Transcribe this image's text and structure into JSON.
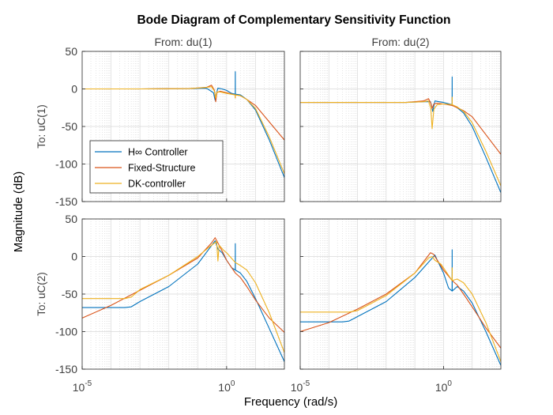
{
  "chart_data": {
    "type": "line",
    "title": "Bode Diagram of Complementary Sensitivity Function",
    "xlabel": "Frequency  (rad/s)",
    "ylabel": "Magnitude (dB)",
    "xscale": "log",
    "xlim": [
      1e-05,
      100
    ],
    "ylim": [
      -150,
      50
    ],
    "xticks": [
      {
        "value": 1e-05,
        "base": "10",
        "exp": "-5"
      },
      {
        "value": 1,
        "base": "10",
        "exp": "0"
      }
    ],
    "yticks": [
      50,
      0,
      -50,
      -100,
      -150
    ],
    "grid": true,
    "legend_position": "left",
    "series": [
      {
        "name": "H∞ Controller",
        "color": "#0072BD"
      },
      {
        "name": "Fixed-Structure",
        "color": "#D95319"
      },
      {
        "name": "DK-controller",
        "color": "#EDB120"
      }
    ],
    "panels": [
      {
        "from": "From: du(1)",
        "to": "To: uC(1)",
        "lines": [
          {
            "x": [
              1e-05,
              0.001,
              0.05,
              0.2,
              0.35,
              0.4,
              0.45,
              0.5,
              0.7,
              1,
              1.5,
              1.99,
              2,
              2.01,
              3,
              5,
              10,
              30,
              100
            ],
            "y": [
              0,
              0,
              0.5,
              1,
              -5,
              -15,
              -5,
              1,
              0,
              -2,
              -6,
              -7,
              23,
              -7,
              -8,
              -14,
              -28,
              -68,
              -118
            ]
          },
          {
            "x": [
              1e-05,
              0.001,
              0.05,
              0.2,
              0.3,
              0.38,
              0.42,
              0.46,
              0.6,
              1,
              1.99,
              2,
              2.01,
              3,
              5,
              10,
              100
            ],
            "y": [
              0,
              0,
              0.5,
              2,
              5,
              -2,
              -17,
              -5,
              -3,
              -5,
              -8,
              -12,
              -8,
              -9,
              -14,
              -22,
              -68
            ]
          },
          {
            "x": [
              1e-05,
              0.001,
              0.05,
              0.2,
              0.3,
              0.38,
              0.42,
              0.46,
              0.6,
              1,
              1.99,
              2,
              2.01,
              3,
              5,
              10,
              30,
              100
            ],
            "y": [
              0,
              0,
              0.5,
              2,
              3,
              -3,
              -12,
              -4,
              -4,
              -6,
              -8,
              -12,
              -8,
              -9,
              -14,
              -26,
              -64,
              -113
            ]
          }
        ]
      },
      {
        "from": "From: du(2)",
        "to": "",
        "lines": [
          {
            "x": [
              1e-05,
              0.001,
              0.05,
              0.2,
              0.35,
              0.38,
              0.42,
              0.5,
              0.7,
              1,
              1.99,
              2,
              2.01,
              3,
              5,
              10,
              30,
              100
            ],
            "y": [
              -18,
              -18,
              -18,
              -17,
              -17,
              -22,
              -30,
              -16,
              -17,
              -18,
              -21,
              16,
              -21,
              -25,
              -32,
              -50,
              -91,
              -138
            ]
          },
          {
            "x": [
              1e-05,
              0.001,
              0.05,
              0.2,
              0.3,
              0.36,
              0.4,
              0.46,
              0.6,
              1,
              2,
              3,
              5,
              10,
              100
            ],
            "y": [
              -18,
              -18,
              -18,
              -16,
              -13,
              -19,
              -26,
              -20,
              -19,
              -20,
              -22,
              -25,
              -29,
              -37,
              -87
            ]
          },
          {
            "x": [
              1e-05,
              0.001,
              0.05,
              0.2,
              0.3,
              0.36,
              0.4,
              0.46,
              0.6,
              1,
              1.99,
              2,
              2.01,
              3,
              5,
              10,
              30,
              100
            ],
            "y": [
              -18,
              -18,
              -18,
              -17,
              -16,
              -26,
              -53,
              -27,
              -21,
              -20,
              -21,
              -11,
              -21,
              -24,
              -30,
              -45,
              -83,
              -129
            ]
          }
        ]
      },
      {
        "from": "",
        "to": "To: uC(2)",
        "lines": [
          {
            "x": [
              1e-05,
              0.0003,
              0.0005,
              0.001,
              0.01,
              0.1,
              0.4,
              0.5,
              0.7,
              1,
              1.5,
              1.99,
              2,
              2.01,
              3,
              5,
              10,
              30,
              100
            ],
            "y": [
              -68,
              -68,
              -67,
              -60,
              -40,
              -10,
              21,
              10,
              5,
              -5,
              -15,
              -18,
              17,
              -18,
              -22,
              -33,
              -56,
              -96,
              -140
            ]
          },
          {
            "x": [
              1e-05,
              0.0001,
              0.001,
              0.01,
              0.1,
              0.3,
              0.4,
              0.5,
              0.8,
              1,
              2,
              3,
              5,
              10,
              30,
              100
            ],
            "y": [
              -82,
              -65,
              -45,
              -25,
              -2,
              18,
              25,
              18,
              3,
              -5,
              -22,
              -28,
              -40,
              -58,
              -82,
              -101
            ]
          },
          {
            "x": [
              1e-05,
              0.0003,
              0.0005,
              0.001,
              0.01,
              0.1,
              0.3,
              0.45,
              0.5,
              0.55,
              0.8,
              1,
              2,
              3,
              5,
              10,
              30,
              100
            ],
            "y": [
              -56,
              -56,
              -54,
              -44,
              -25,
              0,
              15,
              20,
              -6,
              15,
              8,
              5,
              -8,
              -12,
              -18,
              -35,
              -75,
              -128
            ]
          }
        ]
      },
      {
        "from": "",
        "to": "",
        "lines": [
          {
            "x": [
              1e-05,
              0.0003,
              0.0005,
              0.001,
              0.01,
              0.1,
              0.45,
              0.5,
              0.7,
              1,
              1.5,
              1.99,
              2,
              2.01,
              3,
              5,
              10,
              30,
              100
            ],
            "y": [
              -87,
              -87,
              -86,
              -80,
              -60,
              -28,
              0,
              2,
              -10,
              -22,
              -42,
              -46,
              9,
              -46,
              -40,
              -46,
              -62,
              -100,
              -145
            ]
          },
          {
            "x": [
              1e-05,
              0.0001,
              0.001,
              0.01,
              0.1,
              0.35,
              0.45,
              0.5,
              0.8,
              1,
              2,
              3,
              5,
              10,
              30,
              100
            ],
            "y": [
              -100,
              -88,
              -70,
              -50,
              -22,
              5,
              3,
              0,
              -12,
              -18,
              -32,
              -38,
              -50,
              -67,
              -95,
              -122
            ]
          },
          {
            "x": [
              1e-05,
              0.0005,
              0.001,
              0.01,
              0.1,
              0.3,
              0.4,
              0.5,
              0.8,
              1,
              1.5,
              1.99,
              2,
              2.01,
              3,
              5,
              10,
              30,
              100
            ],
            "y": [
              -74,
              -74,
              -72,
              -52,
              -22,
              -2,
              0,
              -5,
              -10,
              -15,
              -25,
              -32,
              -15,
              -32,
              -30,
              -35,
              -50,
              -88,
              -140
            ]
          }
        ]
      }
    ]
  }
}
